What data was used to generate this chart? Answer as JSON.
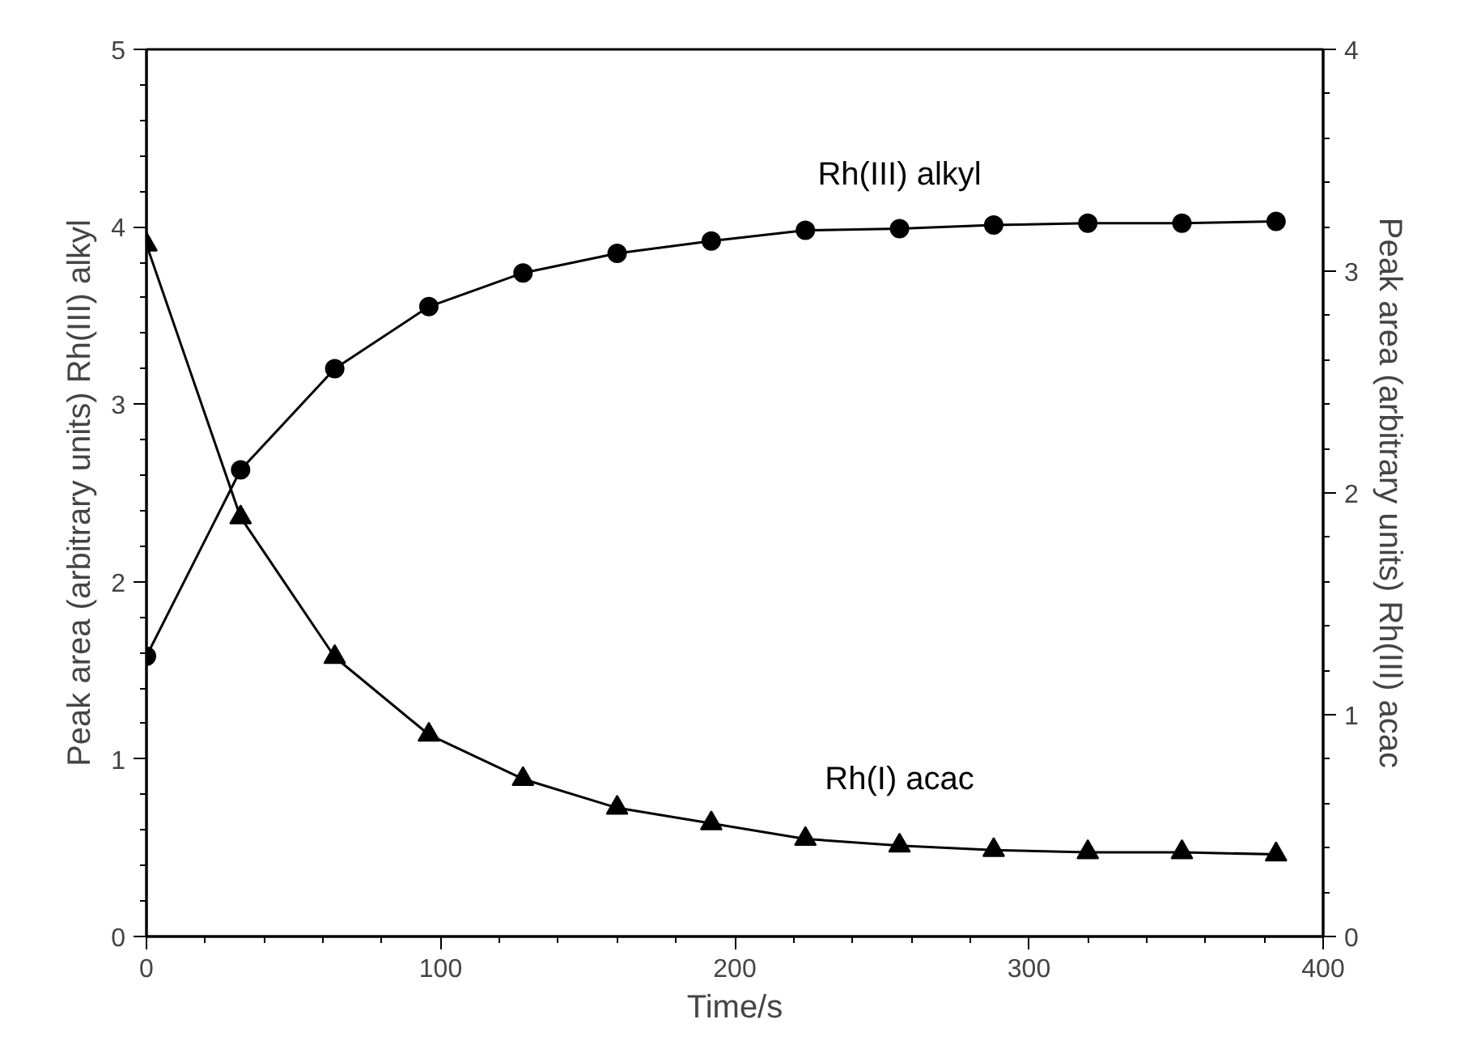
{
  "chart_data": {
    "type": "line",
    "xlabel": "Time/s",
    "ylabel": "Peak area (arbitrary units) Rh(III) alkyl",
    "y2label": "Peak area (arbitrary units) Rh(III) acac",
    "x": [
      0,
      32,
      64,
      96,
      128,
      160,
      192,
      224,
      256,
      288,
      320,
      352,
      384
    ],
    "series": [
      {
        "name": "Rh(III) alkyl",
        "color": "#000000",
        "marker": "circle",
        "values": [
          1.58,
          2.63,
          3.2,
          3.55,
          3.74,
          3.85,
          3.92,
          3.98,
          3.99,
          4.01,
          4.02,
          4.02,
          4.03
        ]
      },
      {
        "name": "Rh(I) acac",
        "color": "#000000",
        "marker": "triangle",
        "axis": "y2",
        "values": [
          3.12,
          1.89,
          1.26,
          0.91,
          0.71,
          0.58,
          0.51,
          0.44,
          0.41,
          0.39,
          0.38,
          0.38,
          0.37
        ]
      }
    ],
    "xlim": [
      0,
      400
    ],
    "xticks": [
      0,
      100,
      200,
      300,
      400
    ],
    "ylim": [
      0,
      5
    ],
    "yticks": [
      0,
      1,
      2,
      3,
      4,
      5
    ],
    "y2lim": [
      0,
      4
    ],
    "y2ticks": [
      0,
      1,
      2,
      3,
      4
    ],
    "grid": false,
    "line_style": "solid"
  }
}
